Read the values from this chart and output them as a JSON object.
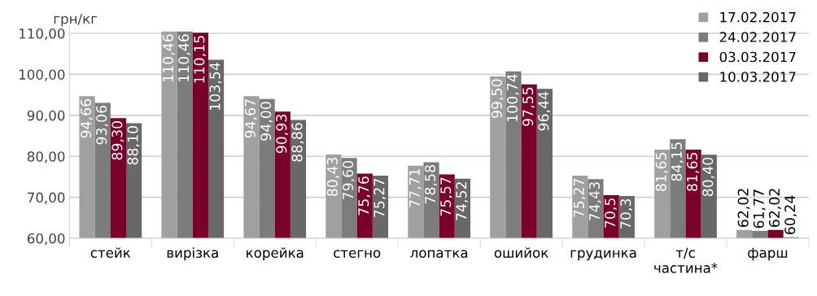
{
  "chart_data": {
    "type": "bar",
    "ylabel": "грн/кг",
    "categories": [
      "стейк",
      "вирізка",
      "корейка",
      "стегно",
      "лопатка",
      "ошийок",
      "грудинка",
      "т/с\nчастина*",
      "фарш"
    ],
    "series": [
      {
        "name": "17.02.2017",
        "color": "#a0a0a0",
        "values": [
          94.66,
          110.46,
          94.67,
          80.43,
          77.71,
          99.5,
          75.27,
          81.65,
          62.02
        ],
        "value_labels": [
          "94,66",
          "110,46",
          "94,67",
          "80,43",
          "77,71",
          "99,50",
          "75,27",
          "81,65",
          "62,02"
        ]
      },
      {
        "name": "24.02.2017",
        "color": "#7c7c7c",
        "values": [
          93.06,
          110.46,
          94.0,
          79.6,
          78.58,
          100.74,
          74.43,
          84.15,
          61.77
        ],
        "value_labels": [
          "93,06",
          "110,46",
          "94,00",
          "79,60",
          "78,58",
          "100,74",
          "74,43",
          "84,15",
          "61,77"
        ]
      },
      {
        "name": "03.03.2017",
        "color": "#7b0029",
        "values": [
          89.3,
          110.15,
          90.93,
          75.76,
          75.57,
          97.55,
          70.5,
          81.65,
          62.02
        ],
        "value_labels": [
          "89,30",
          "110,15",
          "90,93",
          "75,76",
          "75,57",
          "97,55",
          "70,5",
          "81,65",
          "62,02"
        ]
      },
      {
        "name": "10.03.2017",
        "color": "#686868",
        "values": [
          88.1,
          103.54,
          88.86,
          75.27,
          74.52,
          96.44,
          70.3,
          80.4,
          60.24
        ],
        "value_labels": [
          "88,10",
          "103,54",
          "88,86",
          "75,27",
          "74,52",
          "96,44",
          "70,3",
          "80,40",
          "60,24"
        ]
      }
    ],
    "ylim": [
      60,
      112
    ],
    "yticks": [
      {
        "value": 60,
        "label": "60,00"
      },
      {
        "value": 70,
        "label": "70,00"
      },
      {
        "value": 80,
        "label": "80,00"
      },
      {
        "value": 90,
        "label": "90,00"
      },
      {
        "value": 100,
        "label": "100,00"
      },
      {
        "value": 110,
        "label": "110,00"
      }
    ],
    "grid": "y",
    "legend": "top right"
  }
}
